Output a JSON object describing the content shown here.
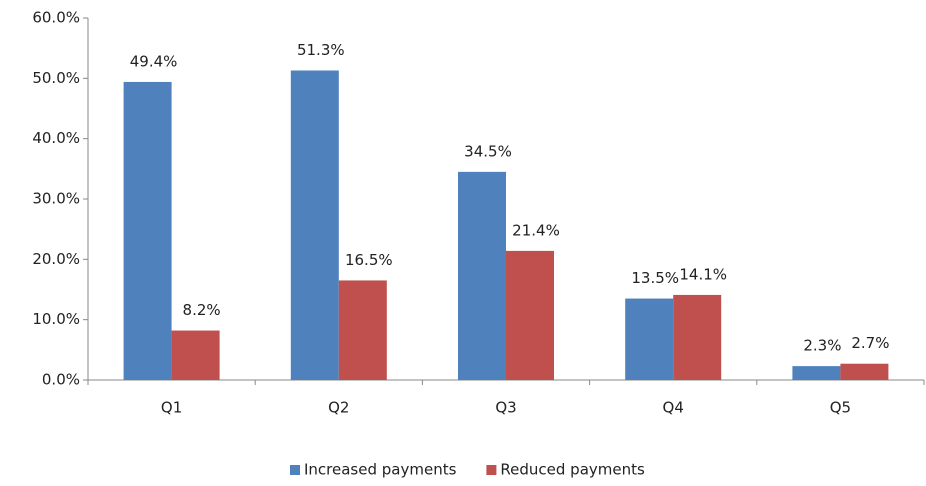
{
  "chart_data": {
    "type": "bar",
    "categories": [
      "Q1",
      "Q2",
      "Q3",
      "Q4",
      "Q5"
    ],
    "series": [
      {
        "name": "Increased payments",
        "color": "#4f81bd",
        "values": [
          49.4,
          51.3,
          34.5,
          13.5,
          2.3
        ],
        "value_labels": [
          "49.4%",
          "51.3%",
          "34.5%",
          "13.5%",
          "2.3%"
        ]
      },
      {
        "name": "Reduced payments",
        "color": "#c0504d",
        "values": [
          8.2,
          16.5,
          21.4,
          14.1,
          2.7
        ],
        "value_labels": [
          "8.2%",
          "16.5%",
          "21.4%",
          "14.1%",
          "2.7%"
        ]
      }
    ],
    "ylim": [
      0,
      60
    ],
    "yticks": [
      {
        "value": 0,
        "label": "0.0%"
      },
      {
        "value": 10,
        "label": "10.0%"
      },
      {
        "value": 20,
        "label": "20.0%"
      },
      {
        "value": 30,
        "label": "30.0%"
      },
      {
        "value": 40,
        "label": "40.0%"
      },
      {
        "value": 50,
        "label": "50.0%"
      },
      {
        "value": 60,
        "label": "60.0%"
      }
    ],
    "grid": false,
    "legend": "bottom"
  }
}
